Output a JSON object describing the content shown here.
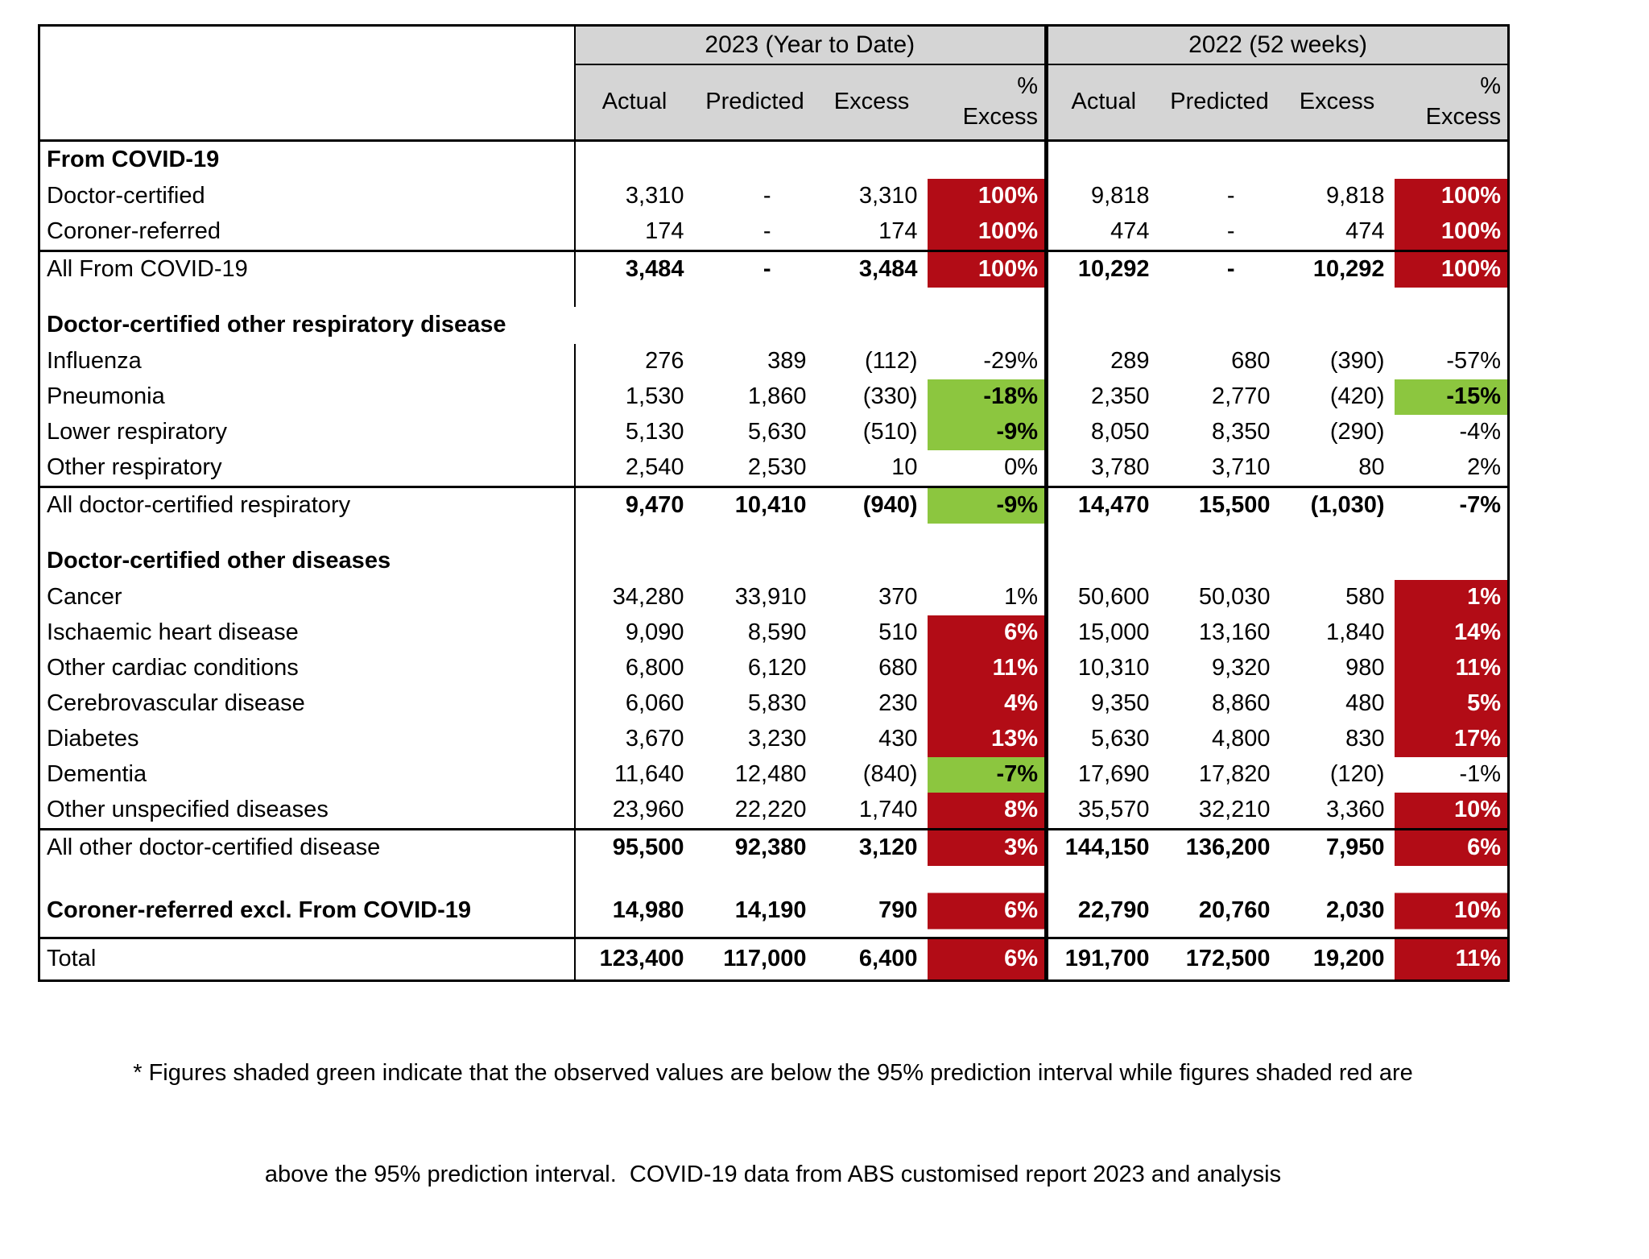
{
  "table": {
    "year_groups": [
      {
        "title": "2023 (Year to Date)"
      },
      {
        "title": "2022 (52 weeks)"
      }
    ],
    "column_headers": [
      "Actual",
      "Predicted",
      "Excess"
    ],
    "pct_header": {
      "line1": "%",
      "line2": "Excess"
    },
    "rows": [
      {
        "type": "section",
        "label": "From COVID-19"
      },
      {
        "type": "data",
        "label": "Doctor-certified",
        "y2023": {
          "values": [
            "3,310",
            "-",
            "3,310",
            "100%"
          ],
          "shade": "red"
        },
        "y2022": {
          "values": [
            "9,818",
            "-",
            "9,818",
            "100%"
          ],
          "shade": "red"
        }
      },
      {
        "type": "data",
        "label": "Coroner-referred",
        "y2023": {
          "values": [
            "174",
            "-",
            "174",
            "100%"
          ],
          "shade": "red"
        },
        "y2022": {
          "values": [
            "474",
            "-",
            "474",
            "100%"
          ],
          "shade": "red"
        }
      },
      {
        "type": "subtotal",
        "label": "All From COVID-19",
        "top_border": true,
        "y2023": {
          "values": [
            "3,484",
            "-",
            "3,484",
            "100%"
          ],
          "shade": "red"
        },
        "y2022": {
          "values": [
            "10,292",
            "-",
            "10,292",
            "100%"
          ],
          "shade": "red"
        }
      },
      {
        "type": "gap"
      },
      {
        "type": "section",
        "label": "Doctor-certified other respiratory disease",
        "wide": true
      },
      {
        "type": "data",
        "label": "Influenza",
        "y2023": {
          "values": [
            "276",
            "389",
            "(112)",
            "-29%"
          ],
          "shade": null
        },
        "y2022": {
          "values": [
            "289",
            "680",
            "(390)",
            "-57%"
          ],
          "shade": null
        }
      },
      {
        "type": "data",
        "label": "Pneumonia",
        "y2023": {
          "values": [
            "1,530",
            "1,860",
            "(330)",
            "-18%"
          ],
          "shade": "green"
        },
        "y2022": {
          "values": [
            "2,350",
            "2,770",
            "(420)",
            "-15%"
          ],
          "shade": "green"
        }
      },
      {
        "type": "data",
        "label": "Lower respiratory",
        "y2023": {
          "values": [
            "5,130",
            "5,630",
            "(510)",
            "-9%"
          ],
          "shade": "green"
        },
        "y2022": {
          "values": [
            "8,050",
            "8,350",
            "(290)",
            "-4%"
          ],
          "shade": null
        }
      },
      {
        "type": "data",
        "label": "Other respiratory",
        "y2023": {
          "values": [
            "2,540",
            "2,530",
            "10",
            "0%"
          ],
          "shade": null
        },
        "y2022": {
          "values": [
            "3,780",
            "3,710",
            "80",
            "2%"
          ],
          "shade": null
        }
      },
      {
        "type": "subtotal",
        "label": "All doctor-certified respiratory",
        "top_border": true,
        "y2023": {
          "values": [
            "9,470",
            "10,410",
            "(940)",
            "-9%"
          ],
          "shade": "green"
        },
        "y2022": {
          "values": [
            "14,470",
            "15,500",
            "(1,030)",
            "-7%"
          ],
          "shade": null
        }
      },
      {
        "type": "gap"
      },
      {
        "type": "section",
        "label": "Doctor-certified other diseases"
      },
      {
        "type": "data",
        "label": "Cancer",
        "y2023": {
          "values": [
            "34,280",
            "33,910",
            "370",
            "1%"
          ],
          "shade": null
        },
        "y2022": {
          "values": [
            "50,600",
            "50,030",
            "580",
            "1%"
          ],
          "shade": "red"
        }
      },
      {
        "type": "data",
        "label": "Ischaemic heart disease",
        "y2023": {
          "values": [
            "9,090",
            "8,590",
            "510",
            "6%"
          ],
          "shade": "red"
        },
        "y2022": {
          "values": [
            "15,000",
            "13,160",
            "1,840",
            "14%"
          ],
          "shade": "red"
        }
      },
      {
        "type": "data",
        "label": "Other cardiac conditions",
        "y2023": {
          "values": [
            "6,800",
            "6,120",
            "680",
            "11%"
          ],
          "shade": "red"
        },
        "y2022": {
          "values": [
            "10,310",
            "9,320",
            "980",
            "11%"
          ],
          "shade": "red"
        }
      },
      {
        "type": "data",
        "label": "Cerebrovascular disease",
        "y2023": {
          "values": [
            "6,060",
            "5,830",
            "230",
            "4%"
          ],
          "shade": "red"
        },
        "y2022": {
          "values": [
            "9,350",
            "8,860",
            "480",
            "5%"
          ],
          "shade": "red"
        }
      },
      {
        "type": "data",
        "label": "Diabetes",
        "y2023": {
          "values": [
            "3,670",
            "3,230",
            "430",
            "13%"
          ],
          "shade": "red"
        },
        "y2022": {
          "values": [
            "5,630",
            "4,800",
            "830",
            "17%"
          ],
          "shade": "red"
        }
      },
      {
        "type": "data",
        "label": "Dementia",
        "y2023": {
          "values": [
            "11,640",
            "12,480",
            "(840)",
            "-7%"
          ],
          "shade": "green"
        },
        "y2022": {
          "values": [
            "17,690",
            "17,820",
            "(120)",
            "-1%"
          ],
          "shade": null
        }
      },
      {
        "type": "data",
        "label": "Other unspecified diseases",
        "y2023": {
          "values": [
            "23,960",
            "22,220",
            "1,740",
            "8%"
          ],
          "shade": "red"
        },
        "y2022": {
          "values": [
            "35,570",
            "32,210",
            "3,360",
            "10%"
          ],
          "shade": "red"
        }
      },
      {
        "type": "subtotal",
        "label": "All other doctor-certified disease",
        "top_border": true,
        "y2023": {
          "values": [
            "95,500",
            "92,380",
            "3,120",
            "3%"
          ],
          "shade": "red"
        },
        "y2022": {
          "values": [
            "144,150",
            "136,200",
            "7,950",
            "6%"
          ],
          "shade": "red"
        }
      },
      {
        "type": "gap"
      },
      {
        "type": "coroner",
        "label": "Coroner-referred excl. From COVID-19",
        "y2023": {
          "values": [
            "14,980",
            "14,190",
            "790",
            "6%"
          ],
          "shade": "red",
          "shade_partial": true
        },
        "y2022": {
          "values": [
            "22,790",
            "20,760",
            "2,030",
            "10%"
          ],
          "shade": "red",
          "shade_partial": true
        }
      },
      {
        "type": "total",
        "label": "Total",
        "top_border": true,
        "y2023": {
          "values": [
            "123,400",
            "117,000",
            "6,400",
            "6%"
          ],
          "shade": "red"
        },
        "y2022": {
          "values": [
            "191,700",
            "172,500",
            "19,200",
            "11%"
          ],
          "shade": "red"
        }
      }
    ]
  },
  "footnote": {
    "line1": "* Figures shaded green indicate that the observed values are below the 95% prediction interval while figures shaded red are",
    "line2": "above the 95% prediction interval.  COVID-19 data from ABS customised report 2023 and analysis"
  },
  "colors": {
    "shade_red": "#b20c16",
    "shade_green": "#8cc63f",
    "header_bg": "#d5d5d5",
    "border_black": "#000000",
    "text_on_red": "#ffffff",
    "text_on_green": "#000000"
  }
}
